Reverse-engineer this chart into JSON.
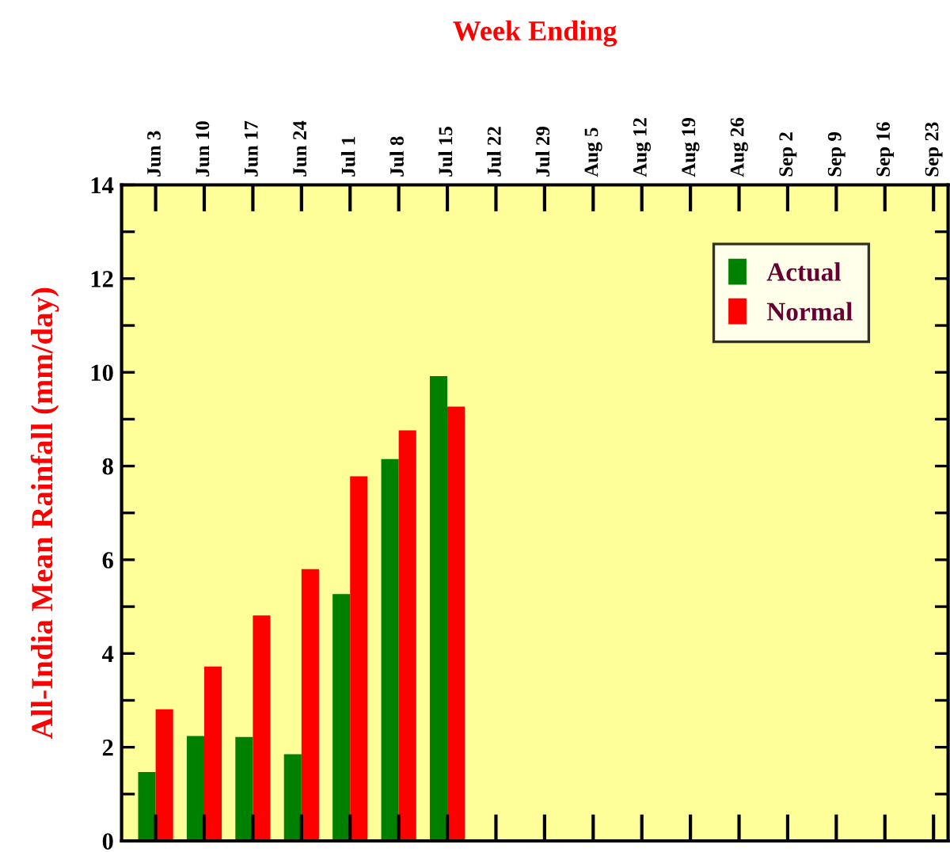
{
  "chart_data": {
    "type": "bar",
    "xlabel": "Week Ending",
    "ylabel": "All-India Mean Rainfall (mm/day)",
    "categories": [
      "Jun 3",
      "Jun 10",
      "Jun 17",
      "Jun 24",
      "Jul 1",
      "Jul 8",
      "Jul 15",
      "Jul 22",
      "Jul 29",
      "Aug 5",
      "Aug 12",
      "Aug 19",
      "Aug 26",
      "Sep 2",
      "Sep 9",
      "Sep 16",
      "Sep 23"
    ],
    "series": [
      {
        "name": "Actual",
        "color": "#008000",
        "values": [
          1.47,
          2.24,
          2.22,
          1.85,
          5.27,
          8.15,
          9.92,
          null,
          null,
          null,
          null,
          null,
          null,
          null,
          null,
          null,
          null
        ]
      },
      {
        "name": "Normal",
        "color": "#ff0000",
        "values": [
          2.81,
          3.72,
          4.81,
          5.8,
          7.78,
          8.76,
          9.27,
          null,
          null,
          null,
          null,
          null,
          null,
          null,
          null,
          null,
          null
        ]
      }
    ],
    "ylim": [
      0,
      14
    ],
    "yticks": [
      0,
      {
        "value": 1,
        "label": null
      },
      2,
      {
        "value": 3,
        "label": null
      },
      4,
      {
        "value": 5,
        "label": null
      },
      6,
      {
        "value": 7,
        "label": null
      },
      8,
      {
        "value": 9,
        "label": null
      },
      10,
      {
        "value": 11,
        "label": null
      },
      12,
      {
        "value": 13,
        "label": null
      },
      14
    ],
    "grid": false,
    "legend": "top right"
  }
}
